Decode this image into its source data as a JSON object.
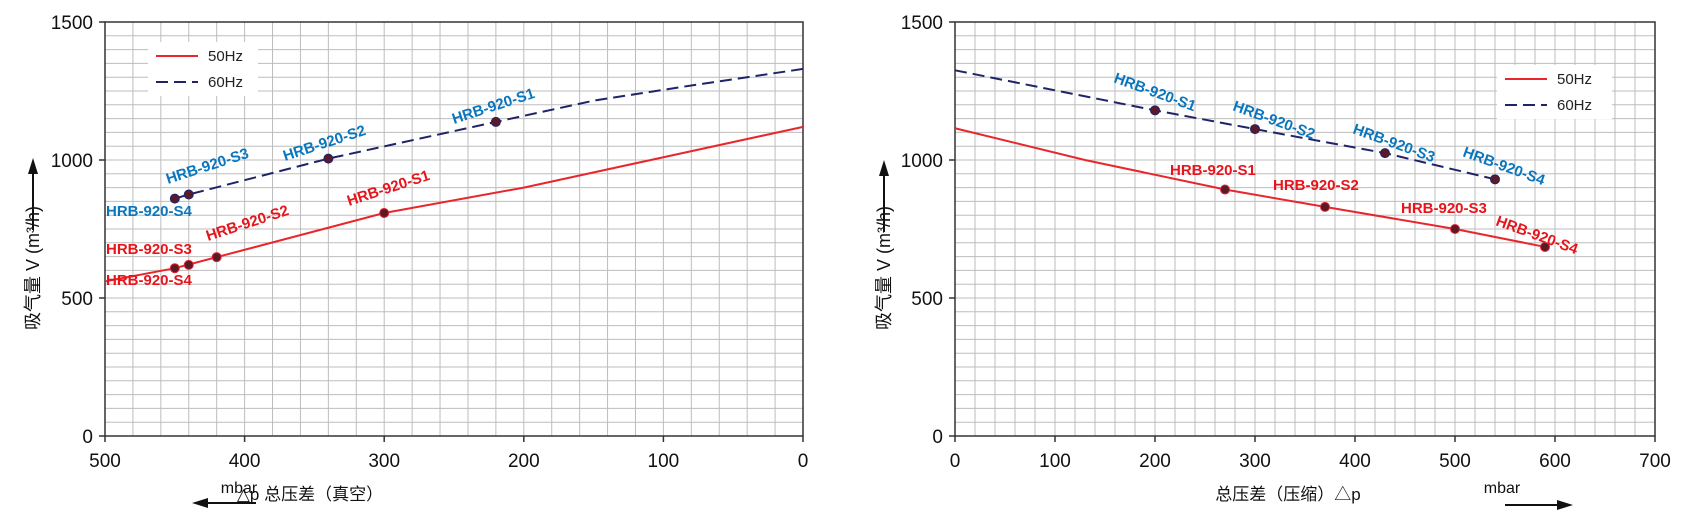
{
  "colors": {
    "hz50": "#e8262b",
    "hz60": "#1f2468",
    "label50": "#e8141b",
    "label60": "#0a76be",
    "grid": "#bdbdbd",
    "axis": "#333333"
  },
  "legend": {
    "hz50": "50Hz",
    "hz60": "60Hz"
  },
  "chart_data": [
    {
      "type": "line",
      "xlabel": "△p 总压差（真空）",
      "ylabel": "吸气量 V (m³/h)",
      "unit": "mbar",
      "xlim": [
        500,
        0
      ],
      "ylim": [
        0,
        1500
      ],
      "xticks": [
        500,
        400,
        300,
        200,
        100,
        0
      ],
      "yticks": [
        0,
        500,
        1000,
        1500
      ],
      "grid": true,
      "legend_position": "top-left",
      "series": [
        {
          "name": "50Hz",
          "style": "solid",
          "x": [
            500,
            450,
            420,
            300,
            200,
            100,
            0
          ],
          "y": [
            560,
            608,
            648,
            808,
            900,
            1010,
            1120
          ]
        },
        {
          "name": "60Hz",
          "style": "dashed",
          "x": [
            450,
            440,
            340,
            220,
            150,
            80,
            0
          ],
          "y": [
            860,
            875,
            1005,
            1138,
            1215,
            1270,
            1330
          ]
        }
      ],
      "points": [
        {
          "series": "50Hz",
          "label": "HRB-920-S1",
          "x": 300,
          "y": 808
        },
        {
          "series": "50Hz",
          "label": "HRB-920-S2",
          "x": 420,
          "y": 648
        },
        {
          "series": "50Hz",
          "label": "HRB-920-S3",
          "x": 440,
          "y": 620
        },
        {
          "series": "50Hz",
          "label": "HRB-920-S4",
          "x": 450,
          "y": 608
        },
        {
          "series": "60Hz",
          "label": "HRB-920-S1",
          "x": 220,
          "y": 1138
        },
        {
          "series": "60Hz",
          "label": "HRB-920-S2",
          "x": 340,
          "y": 1005
        },
        {
          "series": "60Hz",
          "label": "HRB-920-S3",
          "x": 440,
          "y": 875
        },
        {
          "series": "60Hz",
          "label": "HRB-920-S4",
          "x": 450,
          "y": 860
        }
      ]
    },
    {
      "type": "line",
      "xlabel": "总压差（压缩）△p",
      "ylabel": "吸气量 V (m³/h)",
      "unit": "mbar",
      "xlim": [
        0,
        700
      ],
      "ylim": [
        0,
        1500
      ],
      "xticks": [
        0,
        100,
        200,
        300,
        400,
        500,
        600,
        700
      ],
      "yticks": [
        0,
        500,
        1000,
        1500
      ],
      "grid": true,
      "legend_position": "top-right",
      "series": [
        {
          "name": "50Hz",
          "style": "solid",
          "x": [
            0,
            130,
            270,
            370,
            500,
            590
          ],
          "y": [
            1115,
            1000,
            893,
            830,
            750,
            685
          ]
        },
        {
          "name": "60Hz",
          "style": "dashed",
          "x": [
            0,
            200,
            300,
            430,
            540
          ],
          "y": [
            1325,
            1180,
            1112,
            1025,
            930
          ]
        }
      ],
      "points": [
        {
          "series": "50Hz",
          "label": "HRB-920-S1",
          "x": 270,
          "y": 893
        },
        {
          "series": "50Hz",
          "label": "HRB-920-S2",
          "x": 370,
          "y": 830
        },
        {
          "series": "50Hz",
          "label": "HRB-920-S3",
          "x": 500,
          "y": 750
        },
        {
          "series": "50Hz",
          "label": "HRB-920-S4",
          "x": 590,
          "y": 685
        },
        {
          "series": "60Hz",
          "label": "HRB-920-S1",
          "x": 200,
          "y": 1180
        },
        {
          "series": "60Hz",
          "label": "HRB-920-S2",
          "x": 300,
          "y": 1112
        },
        {
          "series": "60Hz",
          "label": "HRB-920-S3",
          "x": 430,
          "y": 1025
        },
        {
          "series": "60Hz",
          "label": "HRB-920-S4",
          "x": 540,
          "y": 930
        }
      ]
    }
  ]
}
